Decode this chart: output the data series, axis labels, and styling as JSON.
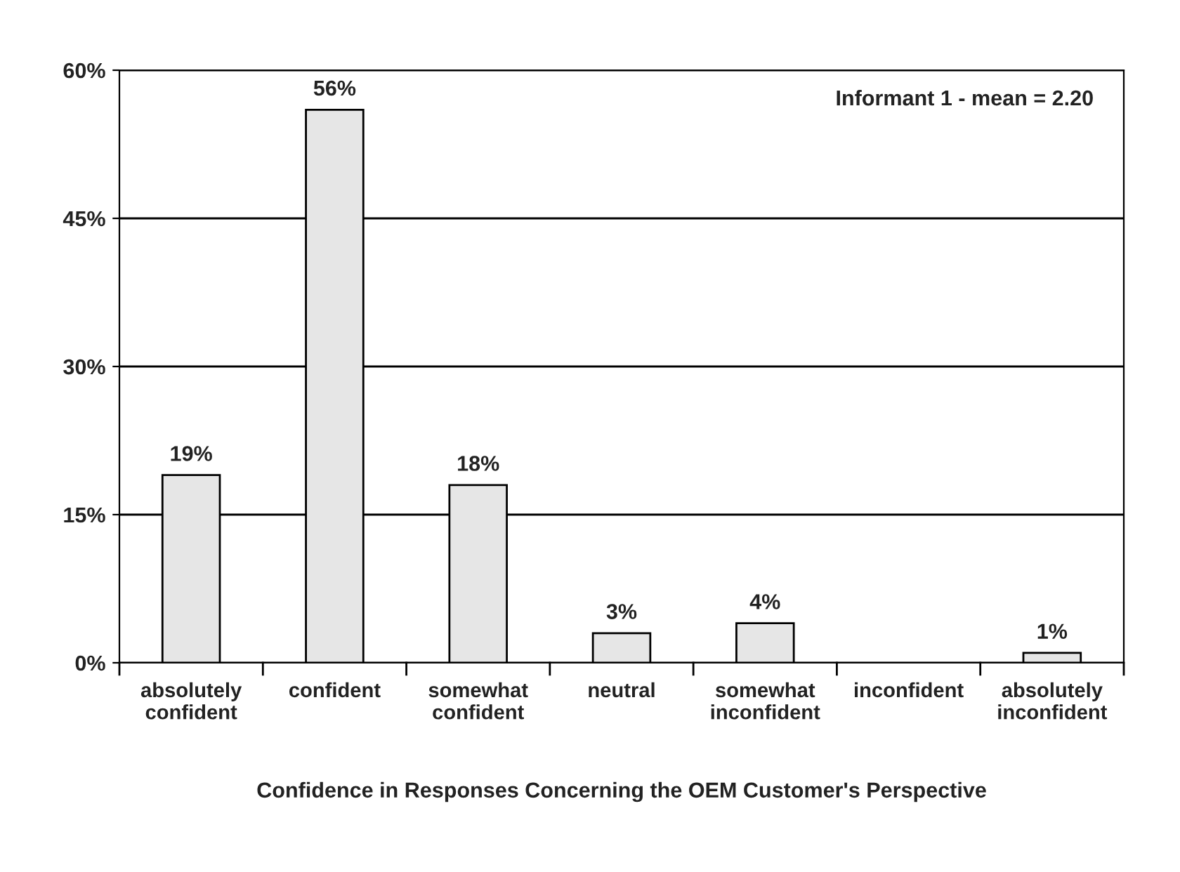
{
  "chart_data": {
    "type": "bar",
    "xlabel": "Confidence in Responses Concerning the OEM Customer's Perspective",
    "categories": [
      "absolutely\nconfident",
      "confident",
      "somewhat\nconfident",
      "neutral",
      "somewhat\ninconfident",
      "inconfident",
      "absolutely\ninconfident"
    ],
    "values": [
      19,
      56,
      18,
      3,
      4,
      null,
      1
    ],
    "value_labels": [
      "19%",
      "56%",
      "18%",
      "3%",
      "4%",
      null,
      "1%"
    ],
    "color": "#e6e6e6",
    "ylim": [
      0,
      60
    ],
    "yticks": [
      {
        "value": 0,
        "label": "0%"
      },
      {
        "value": 15,
        "label": "15%"
      },
      {
        "value": 30,
        "label": "30%"
      },
      {
        "value": 45,
        "label": "45%"
      },
      {
        "value": 60,
        "label": "60%"
      }
    ],
    "grid": "y",
    "annotations": [
      "Informant 1 - mean = 2.20"
    ]
  }
}
